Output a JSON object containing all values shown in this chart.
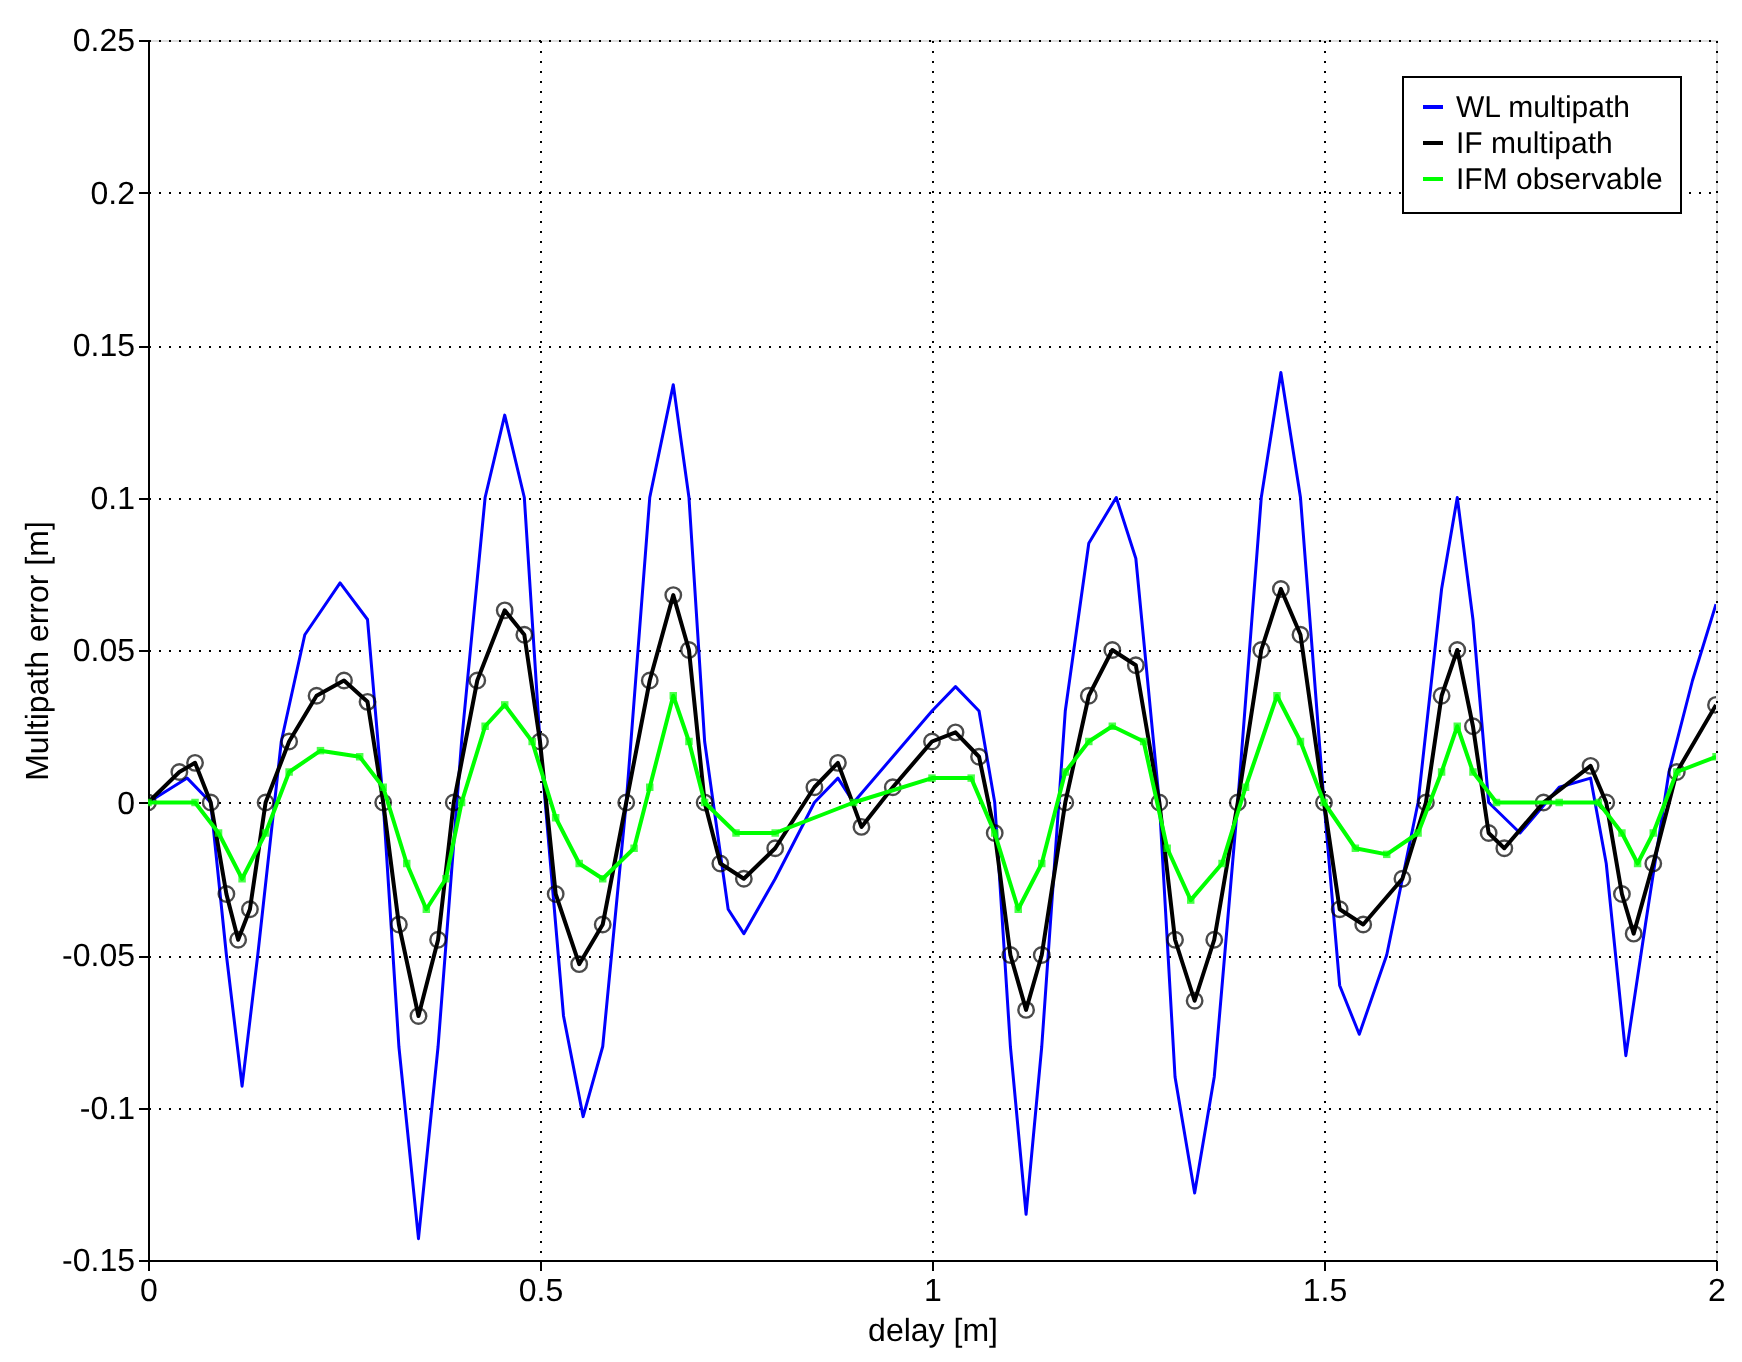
{
  "chart_data": {
    "type": "line",
    "xlabel": "delay [m]",
    "ylabel": "Multipath error [m]",
    "xlim": [
      0,
      2
    ],
    "xticks": [
      0,
      0.5,
      1,
      1.5,
      2
    ],
    "ylim": [
      -0.15,
      0.25
    ],
    "yticks": [
      -0.15,
      -0.1,
      -0.05,
      0,
      0.05,
      0.1,
      0.15,
      0.2,
      0.25
    ],
    "grid": true,
    "legend": "top right",
    "line_style": "solid",
    "series": [
      {
        "name": "WL multipath",
        "color": "#0000ff",
        "marker": "none",
        "x": [
          0,
          0.05,
          0.08,
          0.1,
          0.12,
          0.14,
          0.17,
          0.2,
          0.245,
          0.28,
          0.3,
          0.32,
          0.345,
          0.37,
          0.4,
          0.43,
          0.455,
          0.48,
          0.5,
          0.53,
          0.555,
          0.58,
          0.61,
          0.64,
          0.67,
          0.69,
          0.71,
          0.74,
          0.76,
          0.8,
          0.85,
          0.88,
          0.9,
          0.95,
          1.0,
          1.03,
          1.06,
          1.08,
          1.1,
          1.12,
          1.14,
          1.17,
          1.2,
          1.235,
          1.26,
          1.29,
          1.31,
          1.335,
          1.36,
          1.39,
          1.42,
          1.445,
          1.47,
          1.5,
          1.52,
          1.545,
          1.58,
          1.62,
          1.65,
          1.67,
          1.69,
          1.71,
          1.75,
          1.8,
          1.84,
          1.86,
          1.885,
          1.91,
          1.94,
          1.97,
          2.0
        ],
        "values": [
          0,
          0.008,
          0.0,
          -0.05,
          -0.093,
          -0.05,
          0.02,
          0.055,
          0.072,
          0.06,
          0.0,
          -0.08,
          -0.143,
          -0.08,
          0.02,
          0.1,
          0.127,
          0.1,
          0.02,
          -0.07,
          -0.103,
          -0.08,
          0.0,
          0.1,
          0.137,
          0.1,
          0.02,
          -0.035,
          -0.043,
          -0.025,
          0.0,
          0.008,
          0.0,
          0.015,
          0.03,
          0.038,
          0.03,
          0.0,
          -0.08,
          -0.135,
          -0.08,
          0.03,
          0.085,
          0.1,
          0.08,
          0.0,
          -0.09,
          -0.128,
          -0.09,
          0.0,
          0.1,
          0.141,
          0.1,
          0.0,
          -0.06,
          -0.076,
          -0.05,
          0.0,
          0.07,
          0.1,
          0.06,
          0.0,
          -0.01,
          0.005,
          0.008,
          -0.02,
          -0.083,
          -0.04,
          0.01,
          0.04,
          0.065
        ]
      },
      {
        "name": "IF multipath",
        "color": "#000000",
        "marker": "circle",
        "x": [
          0,
          0.04,
          0.06,
          0.08,
          0.1,
          0.115,
          0.13,
          0.15,
          0.18,
          0.215,
          0.25,
          0.28,
          0.3,
          0.32,
          0.345,
          0.37,
          0.39,
          0.42,
          0.455,
          0.48,
          0.5,
          0.52,
          0.55,
          0.58,
          0.61,
          0.64,
          0.67,
          0.69,
          0.71,
          0.73,
          0.76,
          0.8,
          0.85,
          0.88,
          0.91,
          0.95,
          1.0,
          1.03,
          1.06,
          1.08,
          1.1,
          1.12,
          1.14,
          1.17,
          1.2,
          1.23,
          1.26,
          1.29,
          1.31,
          1.335,
          1.36,
          1.39,
          1.42,
          1.445,
          1.47,
          1.5,
          1.52,
          1.55,
          1.6,
          1.63,
          1.65,
          1.67,
          1.69,
          1.71,
          1.73,
          1.78,
          1.84,
          1.86,
          1.88,
          1.895,
          1.92,
          1.95,
          2.0
        ],
        "values": [
          0,
          0.01,
          0.013,
          0.0,
          -0.03,
          -0.045,
          -0.035,
          0.0,
          0.02,
          0.035,
          0.04,
          0.033,
          0.0,
          -0.04,
          -0.07,
          -0.045,
          0.0,
          0.04,
          0.063,
          0.055,
          0.02,
          -0.03,
          -0.053,
          -0.04,
          0.0,
          0.04,
          0.068,
          0.05,
          0.0,
          -0.02,
          -0.025,
          -0.015,
          0.005,
          0.013,
          -0.008,
          0.005,
          0.02,
          0.023,
          0.015,
          -0.01,
          -0.05,
          -0.068,
          -0.05,
          0.0,
          0.035,
          0.05,
          0.045,
          0.0,
          -0.045,
          -0.065,
          -0.045,
          0.0,
          0.05,
          0.07,
          0.055,
          0.0,
          -0.035,
          -0.04,
          -0.025,
          0.0,
          0.035,
          0.05,
          0.025,
          -0.01,
          -0.015,
          0.0,
          0.012,
          0.0,
          -0.03,
          -0.043,
          -0.02,
          0.01,
          0.032
        ]
      },
      {
        "name": "IFM observable",
        "color": "#00ff00",
        "marker": "square",
        "x": [
          0,
          0.06,
          0.09,
          0.12,
          0.15,
          0.18,
          0.22,
          0.27,
          0.3,
          0.33,
          0.355,
          0.38,
          0.4,
          0.43,
          0.455,
          0.49,
          0.52,
          0.55,
          0.58,
          0.62,
          0.64,
          0.67,
          0.69,
          0.71,
          0.75,
          0.8,
          0.9,
          1.0,
          1.05,
          1.08,
          1.11,
          1.14,
          1.17,
          1.2,
          1.23,
          1.27,
          1.3,
          1.33,
          1.37,
          1.4,
          1.44,
          1.47,
          1.5,
          1.54,
          1.58,
          1.62,
          1.65,
          1.67,
          1.69,
          1.72,
          1.8,
          1.85,
          1.88,
          1.9,
          1.92,
          1.95,
          2.0
        ],
        "values": [
          0,
          0.0,
          -0.01,
          -0.025,
          -0.01,
          0.01,
          0.017,
          0.015,
          0.005,
          -0.02,
          -0.035,
          -0.025,
          0.0,
          0.025,
          0.032,
          0.02,
          -0.005,
          -0.02,
          -0.025,
          -0.015,
          0.005,
          0.035,
          0.02,
          0.0,
          -0.01,
          -0.01,
          0.0,
          0.008,
          0.008,
          -0.01,
          -0.035,
          -0.02,
          0.01,
          0.02,
          0.025,
          0.02,
          -0.015,
          -0.032,
          -0.02,
          0.005,
          0.035,
          0.02,
          0.0,
          -0.015,
          -0.017,
          -0.01,
          0.01,
          0.025,
          0.01,
          0.0,
          0.0,
          0.0,
          -0.01,
          -0.02,
          -0.01,
          0.01,
          0.015
        ]
      }
    ]
  }
}
